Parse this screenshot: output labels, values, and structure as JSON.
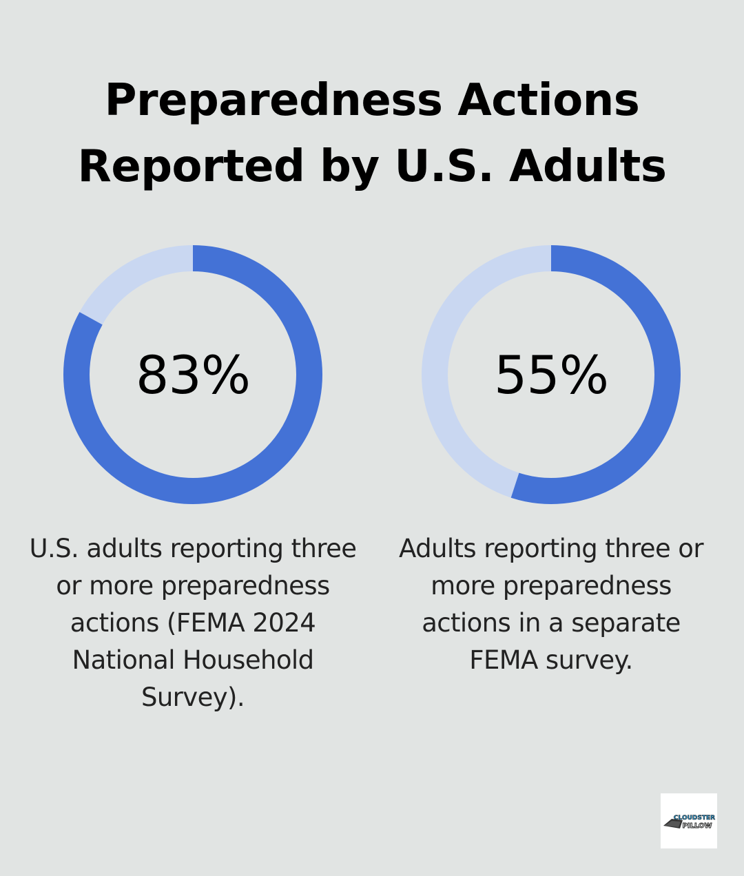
{
  "chart_data": [
    {
      "type": "pie",
      "style": "donut",
      "values": [
        83,
        17
      ],
      "label": "83%",
      "caption": [
        "U.S. adults reporting three",
        "or more preparedness",
        "actions (FEMA 2024",
        "National Household",
        "Survey)."
      ],
      "colors": {
        "filled": "#4472d6",
        "remainder": "#c9d7f1"
      }
    },
    {
      "type": "pie",
      "style": "donut",
      "values": [
        55,
        45
      ],
      "label": "55%",
      "caption": [
        "Adults reporting three or",
        "more preparedness",
        "actions in a separate",
        "FEMA survey."
      ],
      "colors": {
        "filled": "#4472d6",
        "remainder": "#c9d7f1"
      }
    }
  ],
  "title": [
    "Preparedness Actions",
    "Reported by U.S. Adults"
  ],
  "logo": {
    "text_top": "CLOUDSTER",
    "text_bottom": "PILLOW",
    "icon": "pillow-logo-icon"
  },
  "colors": {
    "background": "#e1e4e3",
    "accent": "#4472d6",
    "accent_light": "#c9d7f1"
  }
}
